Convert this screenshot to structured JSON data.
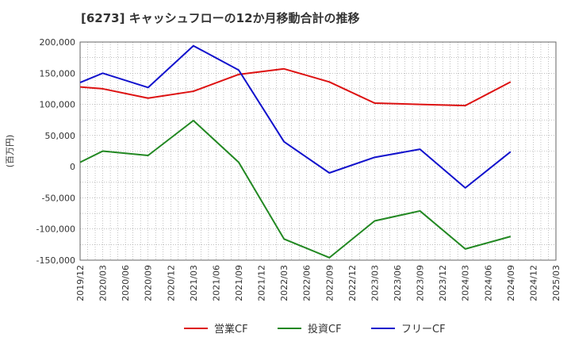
{
  "chart_data": {
    "type": "line",
    "title": "[6273]  キャッシュフローの12か月移動合計の推移",
    "ylabel": "(百万円)",
    "xlabel": "",
    "ylim": [
      -150000,
      200000
    ],
    "yticks": [
      200000,
      150000,
      100000,
      50000,
      0,
      -50000,
      -100000,
      -150000
    ],
    "ytick_labels": [
      "200,000",
      "150,000",
      "100,000",
      "50,000",
      "0",
      "-50,000",
      "-100,000",
      "-150,000"
    ],
    "x_ticks": [
      "2019/12",
      "2020/03",
      "2020/06",
      "2020/09",
      "2020/12",
      "2021/03",
      "2021/06",
      "2021/09",
      "2021/12",
      "2022/03",
      "2022/06",
      "2022/09",
      "2022/12",
      "2023/03",
      "2023/06",
      "2023/09",
      "2023/12",
      "2024/03",
      "2024/06",
      "2024/09",
      "2024/12",
      "2025/03"
    ],
    "grid": true,
    "legend_position": "bottom",
    "series": [
      {
        "name": "営業CF",
        "color": "#dd1111",
        "points": [
          {
            "x": "2019/12",
            "y": 128000
          },
          {
            "x": "2020/03",
            "y": 125000
          },
          {
            "x": "2020/09",
            "y": 110000
          },
          {
            "x": "2021/03",
            "y": 121000
          },
          {
            "x": "2021/09",
            "y": 148000
          },
          {
            "x": "2022/03",
            "y": 157000
          },
          {
            "x": "2022/09",
            "y": 136000
          },
          {
            "x": "2023/03",
            "y": 102000
          },
          {
            "x": "2023/09",
            "y": 100000
          },
          {
            "x": "2024/03",
            "y": 98000
          },
          {
            "x": "2024/09",
            "y": 136000
          }
        ]
      },
      {
        "name": "投資CF",
        "color": "#228822",
        "points": [
          {
            "x": "2019/12",
            "y": 7000
          },
          {
            "x": "2020/03",
            "y": 25000
          },
          {
            "x": "2020/09",
            "y": 18000
          },
          {
            "x": "2021/03",
            "y": 74000
          },
          {
            "x": "2021/09",
            "y": 7000
          },
          {
            "x": "2022/03",
            "y": -116000
          },
          {
            "x": "2022/09",
            "y": -146000
          },
          {
            "x": "2023/03",
            "y": -87000
          },
          {
            "x": "2023/09",
            "y": -71000
          },
          {
            "x": "2024/03",
            "y": -132000
          },
          {
            "x": "2024/09",
            "y": -112000
          }
        ]
      },
      {
        "name": "フリーCF",
        "color": "#1111cc",
        "points": [
          {
            "x": "2019/12",
            "y": 135000
          },
          {
            "x": "2020/03",
            "y": 150000
          },
          {
            "x": "2020/09",
            "y": 127000
          },
          {
            "x": "2021/03",
            "y": 194000
          },
          {
            "x": "2021/09",
            "y": 155000
          },
          {
            "x": "2022/03",
            "y": 40000
          },
          {
            "x": "2022/09",
            "y": -10000
          },
          {
            "x": "2023/03",
            "y": 15000
          },
          {
            "x": "2023/09",
            "y": 28000
          },
          {
            "x": "2024/03",
            "y": -34000
          },
          {
            "x": "2024/09",
            "y": 24000
          }
        ]
      }
    ]
  }
}
